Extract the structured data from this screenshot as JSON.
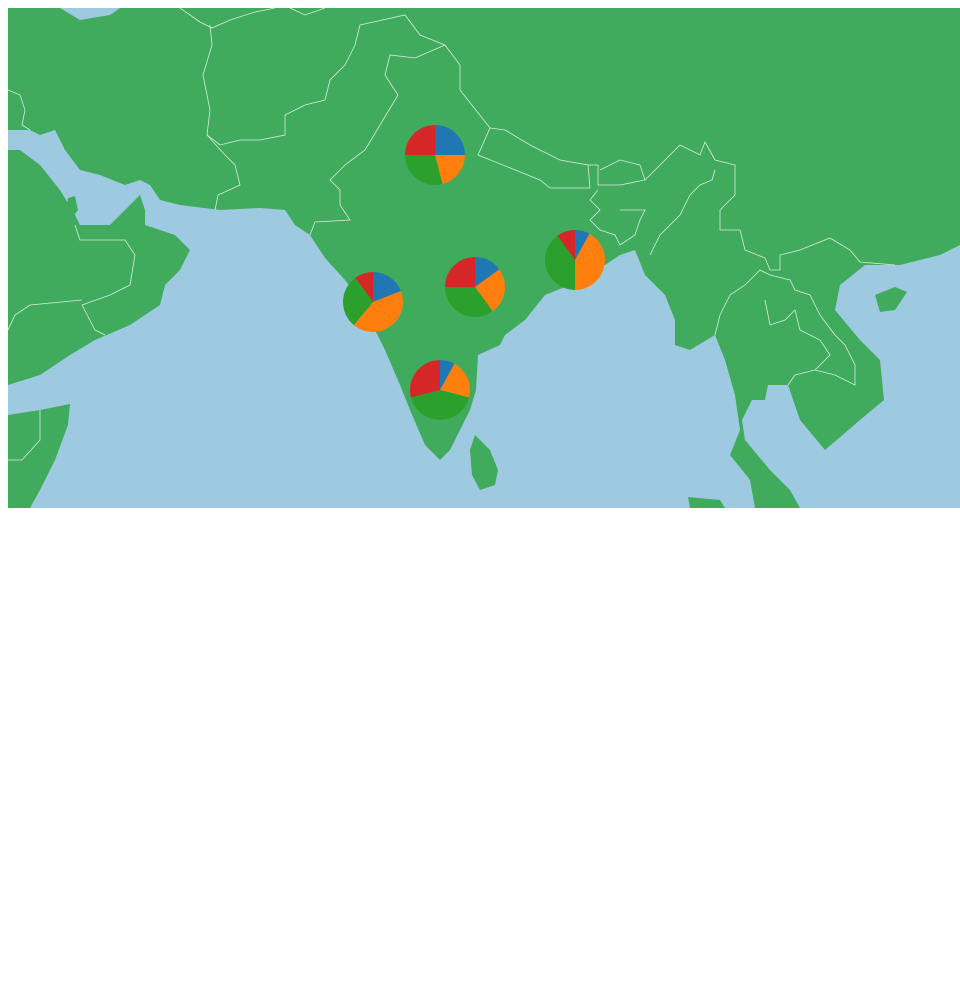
{
  "colors": {
    "ocean": "#9ecae1",
    "land": "#41ab5d",
    "border": "#d9eadc",
    "slices": [
      "#1f77b4",
      "#ff7f0e",
      "#2ca02c",
      "#d62728"
    ]
  },
  "pies": [
    {
      "values": [
        0.25,
        0.21,
        0.29,
        0.25
      ]
    },
    {
      "values": [
        0.15,
        0.25,
        0.35,
        0.25
      ]
    },
    {
      "values": [
        0.08,
        0.42,
        0.4,
        0.1
      ]
    },
    {
      "values": [
        0.19,
        0.42,
        0.29,
        0.1
      ]
    },
    {
      "values": [
        0.08,
        0.21,
        0.42,
        0.29
      ]
    }
  ]
}
